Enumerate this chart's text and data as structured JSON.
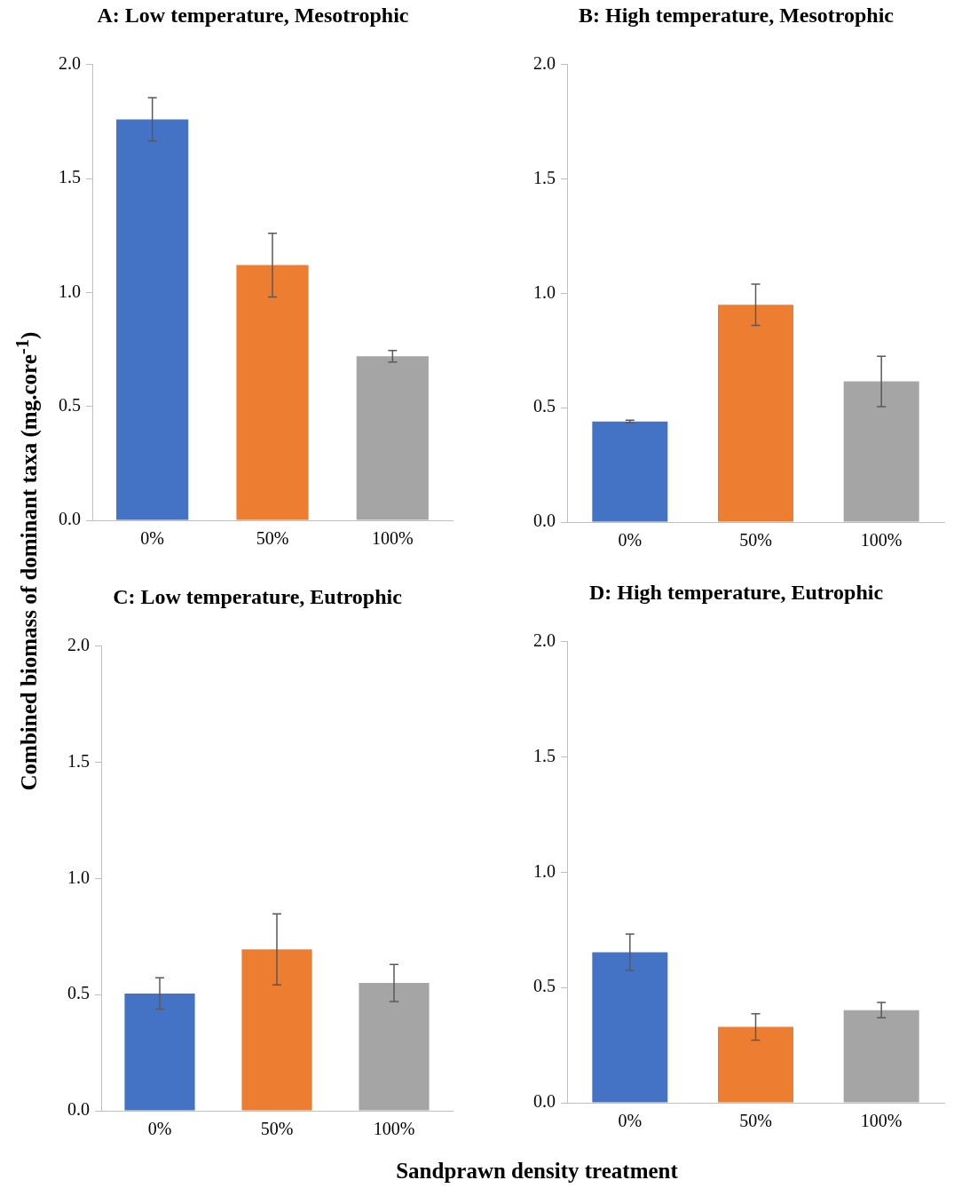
{
  "chart_data": [
    {
      "type": "bar",
      "title": "A: Low temperature, Mesotrophic",
      "ylabel": "Combined biomass of dominant taxa (mg.core$^{-1}$)",
      "categories": [
        "0%",
        "50%",
        "100%"
      ],
      "values": [
        1.76,
        1.12,
        0.72
      ],
      "errors": [
        0.095,
        0.14,
        0.025
      ],
      "colors": [
        "#4472c4",
        "#ed7d31",
        "#a5a5a5"
      ],
      "ylim": [
        0,
        2
      ],
      "yticks": [
        {
          "value": 0,
          "label": "0.0"
        },
        {
          "value": 0.5,
          "label": "0.5"
        },
        {
          "value": 1,
          "label": "1.0"
        },
        {
          "value": 1.5,
          "label": "1.5"
        },
        {
          "value": 2,
          "label": "2.0"
        }
      ],
      "grid": false,
      "legend": false
    },
    {
      "type": "bar",
      "title": "B: High temperature, Mesotrophic",
      "categories": [
        "0%",
        "50%",
        "100%"
      ],
      "values": [
        0.44,
        0.95,
        0.615
      ],
      "errors": [
        0.005,
        0.09,
        0.11
      ],
      "colors": [
        "#4472c4",
        "#ed7d31",
        "#a5a5a5"
      ],
      "ylim": [
        0,
        2
      ],
      "yticks": [
        {
          "value": 0,
          "label": "0.0"
        },
        {
          "value": 0.5,
          "label": "0.5"
        },
        {
          "value": 1,
          "label": "1.0"
        },
        {
          "value": 1.5,
          "label": "1.5"
        },
        {
          "value": 2,
          "label": "2.0"
        }
      ],
      "grid": false,
      "legend": false
    },
    {
      "type": "bar",
      "title": "C: Low temperature, Eutrophic",
      "xlabel": "Sandprawn density treatment",
      "categories": [
        "0%",
        "50%",
        "100%"
      ],
      "values": [
        0.505,
        0.695,
        0.55
      ],
      "errors": [
        0.067,
        0.153,
        0.08
      ],
      "colors": [
        "#4472c4",
        "#ed7d31",
        "#a5a5a5"
      ],
      "ylim": [
        0,
        2
      ],
      "yticks": [
        {
          "value": 0,
          "label": "0.0"
        },
        {
          "value": 0.5,
          "label": "0.5"
        },
        {
          "value": 1,
          "label": "1.0"
        },
        {
          "value": 1.5,
          "label": "1.5"
        },
        {
          "value": 2,
          "label": "2.0"
        }
      ],
      "grid": false,
      "legend": false
    },
    {
      "type": "bar",
      "title": "D: High temperature, Eutrophic",
      "categories": [
        "0%",
        "50%",
        "100%"
      ],
      "values": [
        0.653,
        0.329,
        0.402
      ],
      "errors": [
        0.079,
        0.057,
        0.033
      ],
      "colors": [
        "#4472c4",
        "#ed7d31",
        "#a5a5a5"
      ],
      "ylim": [
        0,
        2
      ],
      "yticks": [
        {
          "value": 0,
          "label": "0.0"
        },
        {
          "value": 0.5,
          "label": "0.5"
        },
        {
          "value": 1,
          "label": "1.0"
        },
        {
          "value": 1.5,
          "label": "1.5"
        },
        {
          "value": 2,
          "label": "2.0"
        }
      ],
      "grid": false,
      "legend": false
    }
  ]
}
